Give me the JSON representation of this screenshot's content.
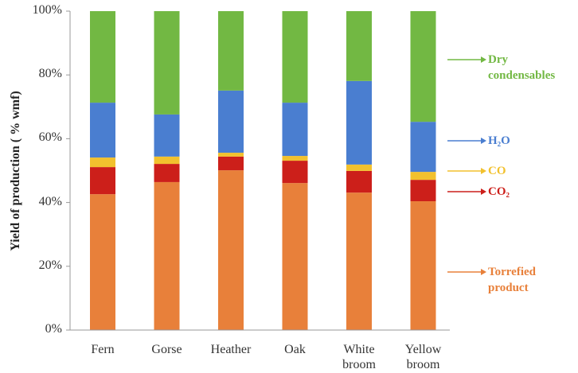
{
  "chart_data": {
    "type": "stacked_bar",
    "y_label": "Yield of production ( % wmf)",
    "categories": [
      "Fern",
      "Gorse",
      "Heather",
      "Oak",
      "White broom",
      "Yellow broom"
    ],
    "series": [
      {
        "name": "Torrefied product",
        "color": "#e8803a",
        "values": [
          42.6,
          46.4,
          50.1,
          46.1,
          43.1,
          40.4
        ]
      },
      {
        "name": "CO₂",
        "color": "#cc1f1a",
        "values": [
          8.5,
          5.7,
          4.3,
          7.0,
          6.8,
          6.7
        ]
      },
      {
        "name": "CO",
        "color": "#f2c12e",
        "values": [
          3.0,
          2.3,
          1.2,
          1.5,
          2.0,
          2.5
        ]
      },
      {
        "name": "H₂O",
        "color": "#4a7ed0",
        "values": [
          17.2,
          13.2,
          19.5,
          16.7,
          26.2,
          15.7
        ]
      },
      {
        "name": "Dry condensables",
        "color": "#72b843",
        "values": [
          28.7,
          32.4,
          24.9,
          28.7,
          21.9,
          34.7
        ]
      }
    ],
    "ylim": [
      0,
      100
    ],
    "yticks": [
      {
        "value": 0,
        "label": "0%"
      },
      {
        "value": 20,
        "label": "20%"
      },
      {
        "value": 40,
        "label": "40%"
      },
      {
        "value": 60,
        "label": "60%"
      },
      {
        "value": 80,
        "label": "80%"
      },
      {
        "value": 100,
        "label": "100%"
      }
    ]
  }
}
